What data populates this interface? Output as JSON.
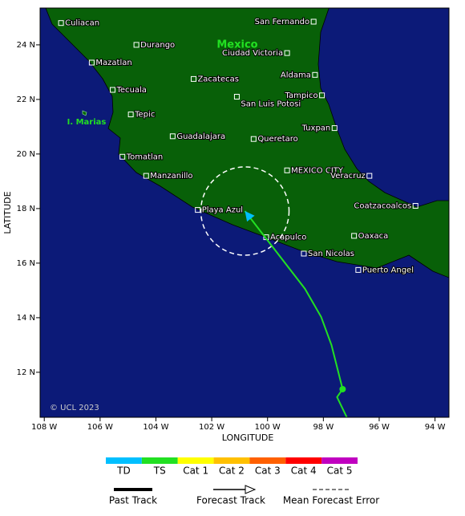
{
  "map": {
    "title_country": "Mexico",
    "island": "I. Marias",
    "copyright": "© UCL 2023",
    "x_label": "LONGITUDE",
    "y_label": "LATITUDE",
    "xlim": [
      -108.15,
      -93.5
    ],
    "ylim": [
      10.35,
      25.35
    ],
    "xticks": [
      {
        "value": -108,
        "label": "108 W"
      },
      {
        "value": -106,
        "label": "106 W"
      },
      {
        "value": -104,
        "label": "104 W"
      },
      {
        "value": -102,
        "label": "102 W"
      },
      {
        "value": -100,
        "label": "100 W"
      },
      {
        "value": -98,
        "label": "98 W"
      },
      {
        "value": -96,
        "label": "96 W"
      },
      {
        "value": -94,
        "label": "94 W"
      }
    ],
    "yticks": [
      {
        "value": 12,
        "label": "12 N"
      },
      {
        "value": 14,
        "label": "14 N"
      },
      {
        "value": 16,
        "label": "16 N"
      },
      {
        "value": 18,
        "label": "18 N"
      },
      {
        "value": 20,
        "label": "20 N"
      },
      {
        "value": 22,
        "label": "22 N"
      },
      {
        "value": 24,
        "label": "24 N"
      }
    ],
    "cities": [
      {
        "name": "Culiacan",
        "lon": -107.4,
        "lat": 24.8
      },
      {
        "name": "Durango",
        "lon": -104.7,
        "lat": 24.0
      },
      {
        "name": "Mazatlan",
        "lon": -106.3,
        "lat": 23.35
      },
      {
        "name": "Tecuala",
        "lon": -105.55,
        "lat": 22.35
      },
      {
        "name": "Zacatecas",
        "lon": -102.65,
        "lat": 22.75
      },
      {
        "name": "Tepic",
        "lon": -104.9,
        "lat": 21.45
      },
      {
        "name": "Guadalajara",
        "lon": -103.4,
        "lat": 20.65
      },
      {
        "name": "Tomatlan",
        "lon": -105.2,
        "lat": 19.9
      },
      {
        "name": "Manzanillo",
        "lon": -104.35,
        "lat": 19.2
      },
      {
        "name": "San Fernando",
        "lon": -98.35,
        "lat": 24.85
      },
      {
        "name": "Ciudad Victoria",
        "lon": -99.3,
        "lat": 23.7
      },
      {
        "name": "Aldama",
        "lon": -98.3,
        "lat": 22.9
      },
      {
        "name": "Tampico",
        "lon": -98.05,
        "lat": 22.15
      },
      {
        "name": "San Luis Potosi",
        "lon": -101.1,
        "lat": 22.1
      },
      {
        "name": "Tuxpan",
        "lon": -97.6,
        "lat": 20.95
      },
      {
        "name": "Queretaro",
        "lon": -100.5,
        "lat": 20.55
      },
      {
        "name": "MEXICO CITY",
        "lon": -99.3,
        "lat": 19.4
      },
      {
        "name": "Veracruz",
        "lon": -96.35,
        "lat": 19.2
      },
      {
        "name": "Playa Azul",
        "lon": -102.5,
        "lat": 17.95
      },
      {
        "name": "Coatzacoalcos",
        "lon": -94.7,
        "lat": 18.1
      },
      {
        "name": "Acapulco",
        "lon": -100.05,
        "lat": 16.95
      },
      {
        "name": "Oaxaca",
        "lon": -96.9,
        "lat": 17.0
      },
      {
        "name": "San Nicolas",
        "lon": -98.7,
        "lat": 16.35
      },
      {
        "name": "Puerto Angel",
        "lon": -96.75,
        "lat": 15.75
      }
    ],
    "track": {
      "color": "#22e022",
      "lon": [
        -97.16,
        -97.51,
        -97.31,
        -97.71,
        -98.08,
        -98.66,
        -100.81
      ],
      "lat": [
        10.35,
        11.09,
        11.38,
        13.0,
        14.03,
        15.06,
        17.91
      ]
    },
    "legend": {
      "categories": [
        {
          "name": "TD",
          "color": "#00bfff"
        },
        {
          "name": "TS",
          "color": "#22e022"
        },
        {
          "name": "Cat 1",
          "color": "#ffff00"
        },
        {
          "name": "Cat 2",
          "color": "#ffc000"
        },
        {
          "name": "Cat 3",
          "color": "#ff6000"
        },
        {
          "name": "Cat 4",
          "color": "#ff0000"
        },
        {
          "name": "Cat 5",
          "color": "#c000c0"
        }
      ],
      "lines": [
        "Past Track",
        "Forecast Track",
        "Mean Forecast Error"
      ]
    }
  }
}
